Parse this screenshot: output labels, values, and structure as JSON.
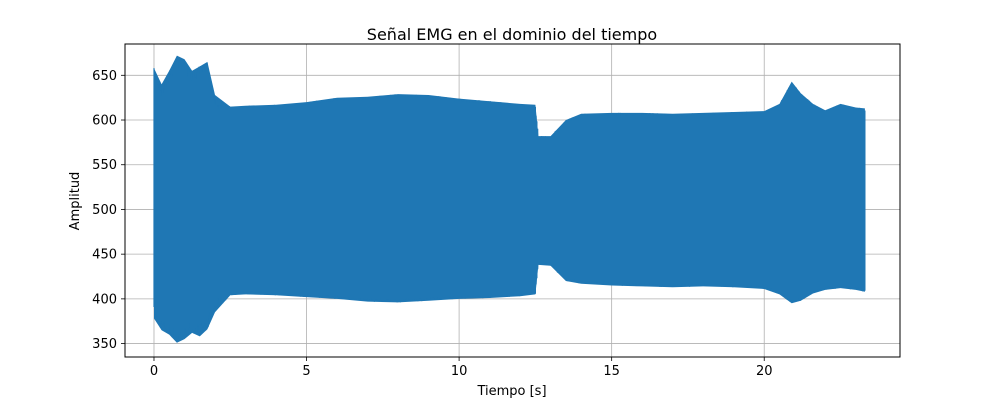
{
  "chart_data": {
    "type": "line",
    "title": "Señal EMG en el dominio del tiempo",
    "xlabel": "Tiempo [s]",
    "ylabel": "Amplitud",
    "xlim": [
      -0.95,
      24.45
    ],
    "ylim": [
      335,
      685
    ],
    "xticks": [
      0,
      5,
      10,
      15,
      20
    ],
    "yticks": [
      350,
      400,
      450,
      500,
      550,
      600,
      650
    ],
    "x_tick_labels": [
      "0",
      "5",
      "10",
      "15",
      "20"
    ],
    "y_tick_labels": [
      "350",
      "400",
      "450",
      "500",
      "550",
      "600",
      "650"
    ],
    "grid": true,
    "legend": "none",
    "color": "#1f77b4",
    "duration_s": 23.3,
    "envelope": [
      {
        "t": 0.0,
        "max": 658,
        "min": 378
      },
      {
        "t": 0.25,
        "max": 640,
        "min": 365
      },
      {
        "t": 0.5,
        "max": 655,
        "min": 360
      },
      {
        "t": 0.75,
        "max": 672,
        "min": 351
      },
      {
        "t": 1.0,
        "max": 668,
        "min": 355
      },
      {
        "t": 1.25,
        "max": 655,
        "min": 362
      },
      {
        "t": 1.5,
        "max": 660,
        "min": 358
      },
      {
        "t": 1.75,
        "max": 665,
        "min": 366
      },
      {
        "t": 2.0,
        "max": 628,
        "min": 385
      },
      {
        "t": 2.5,
        "max": 615,
        "min": 404
      },
      {
        "t": 3.0,
        "max": 616,
        "min": 405
      },
      {
        "t": 4.0,
        "max": 617,
        "min": 404
      },
      {
        "t": 5.0,
        "max": 620,
        "min": 402
      },
      {
        "t": 6.0,
        "max": 625,
        "min": 400
      },
      {
        "t": 7.0,
        "max": 626,
        "min": 397
      },
      {
        "t": 8.0,
        "max": 629,
        "min": 396
      },
      {
        "t": 9.0,
        "max": 628,
        "min": 398
      },
      {
        "t": 10.0,
        "max": 624,
        "min": 400
      },
      {
        "t": 11.0,
        "max": 621,
        "min": 401
      },
      {
        "t": 12.0,
        "max": 618,
        "min": 403
      },
      {
        "t": 12.5,
        "max": 617,
        "min": 405
      },
      {
        "t": 12.6,
        "max": 582,
        "min": 438
      },
      {
        "t": 13.0,
        "max": 582,
        "min": 437
      },
      {
        "t": 13.5,
        "max": 600,
        "min": 420
      },
      {
        "t": 14.0,
        "max": 607,
        "min": 417
      },
      {
        "t": 15.0,
        "max": 608,
        "min": 415
      },
      {
        "t": 16.0,
        "max": 608,
        "min": 414
      },
      {
        "t": 17.0,
        "max": 607,
        "min": 413
      },
      {
        "t": 18.0,
        "max": 608,
        "min": 414
      },
      {
        "t": 19.0,
        "max": 609,
        "min": 413
      },
      {
        "t": 20.0,
        "max": 610,
        "min": 411
      },
      {
        "t": 20.5,
        "max": 618,
        "min": 405
      },
      {
        "t": 20.9,
        "max": 643,
        "min": 395
      },
      {
        "t": 21.2,
        "max": 630,
        "min": 398
      },
      {
        "t": 21.6,
        "max": 618,
        "min": 406
      },
      {
        "t": 22.0,
        "max": 611,
        "min": 410
      },
      {
        "t": 22.5,
        "max": 618,
        "min": 412
      },
      {
        "t": 23.0,
        "max": 614,
        "min": 410
      },
      {
        "t": 23.3,
        "max": 613,
        "min": 408
      }
    ]
  }
}
